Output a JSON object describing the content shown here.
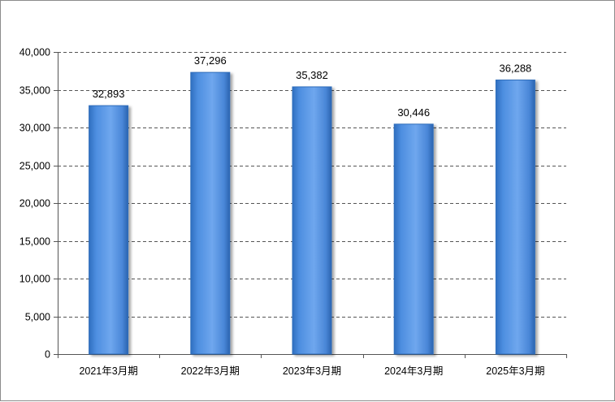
{
  "chart_data": {
    "type": "bar",
    "title": "",
    "xlabel": "",
    "ylabel": "",
    "categories": [
      "2021年3月期",
      "2022年3月期",
      "2023年3月期",
      "2024年3月期",
      "2025年3月期"
    ],
    "values": [
      32893,
      37296,
      35382,
      30446,
      36288
    ],
    "data_labels": [
      "32,893",
      "37,296",
      "35,382",
      "30,446",
      "36,288"
    ],
    "ylim": [
      0,
      40000
    ],
    "y_ticks": [
      0,
      5000,
      10000,
      15000,
      20000,
      25000,
      30000,
      35000,
      40000
    ],
    "y_tick_labels": [
      "0",
      "5,000",
      "10,000",
      "15,000",
      "20,000",
      "25,000",
      "30,000",
      "35,000",
      "40,000"
    ],
    "grid": true,
    "grid_style": "dashed",
    "legend": "none",
    "bar_color": "#4f8fe0",
    "bar_edge_color": "#2f6dbb"
  }
}
